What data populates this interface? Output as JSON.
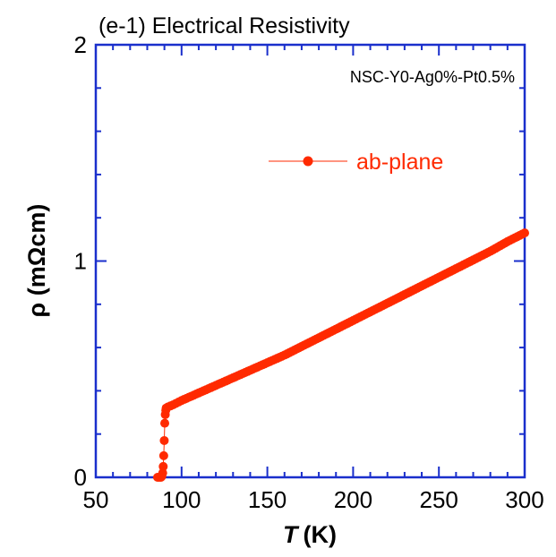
{
  "chart_data": {
    "type": "scatter",
    "title": "(e-1) Electrical Resistivity",
    "annotation": "NSC-Y0-Ag0%-Pt0.5%",
    "xlabel_symbol": "T",
    "xlabel_unit": "(K)",
    "ylabel": "ρ (mΩcm)",
    "xlim": [
      50,
      300
    ],
    "ylim": [
      0,
      2
    ],
    "x_ticks": [
      50,
      100,
      150,
      200,
      250,
      300
    ],
    "y_ticks": [
      0,
      1,
      2
    ],
    "grid": false,
    "legend_position": "upper-center",
    "series": [
      {
        "name": "ab-plane",
        "color": "#ff2a00",
        "x": [
          86,
          87,
          88,
          88.5,
          89,
          89.3,
          89.6,
          89.9,
          90.2,
          90.5,
          90.8,
          91,
          92,
          95,
          100,
          110,
          120,
          130,
          140,
          150,
          160,
          170,
          180,
          190,
          200,
          210,
          220,
          230,
          240,
          250,
          260,
          270,
          280,
          290,
          300
        ],
        "y": [
          0.0,
          0.0,
          0.0,
          0.005,
          0.02,
          0.05,
          0.1,
          0.17,
          0.25,
          0.29,
          0.31,
          0.32,
          0.325,
          0.335,
          0.355,
          0.39,
          0.425,
          0.46,
          0.495,
          0.53,
          0.565,
          0.605,
          0.645,
          0.685,
          0.725,
          0.765,
          0.805,
          0.845,
          0.885,
          0.925,
          0.965,
          1.005,
          1.045,
          1.09,
          1.13
        ]
      }
    ]
  }
}
